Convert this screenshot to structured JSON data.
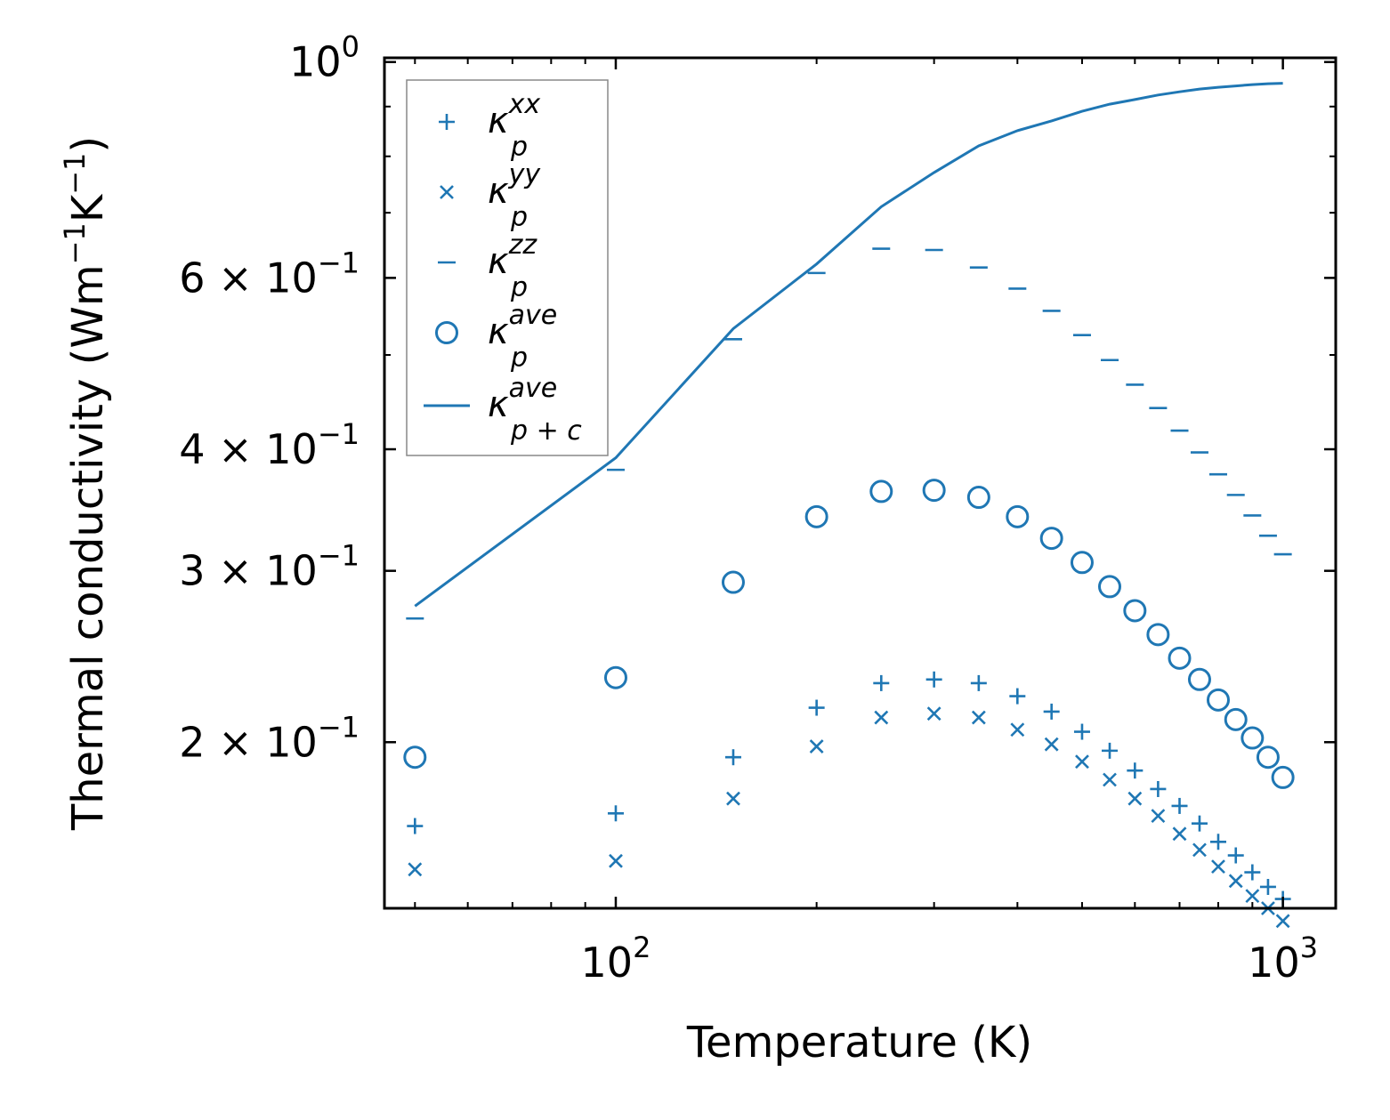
{
  "chart_data": {
    "type": "scatter",
    "xscale": "log",
    "yscale": "log",
    "xlabel": "Temperature (K)",
    "ylabel": "Thermal conductivity (Wm",
    "ylabel_unit_parts": [
      "−1",
      "K",
      "−1",
      ")"
    ],
    "xlim": [
      45,
      1200
    ],
    "ylim": [
      0.135,
      1.01
    ],
    "x_ticks": [
      {
        "value": 100,
        "base": "10",
        "exp": "2"
      },
      {
        "value": 1000,
        "base": "10",
        "exp": "3"
      }
    ],
    "y_ticks": [
      {
        "value": 1.0,
        "coef": "",
        "base": "10",
        "exp": "0"
      },
      {
        "value": 0.6,
        "coef": "6 × ",
        "base": "10",
        "exp": "−1"
      },
      {
        "value": 0.4,
        "coef": "4 × ",
        "base": "10",
        "exp": "−1"
      },
      {
        "value": 0.3,
        "coef": "3 × ",
        "base": "10",
        "exp": "−1"
      },
      {
        "value": 0.2,
        "coef": "2 × ",
        "base": "10",
        "exp": "−1"
      }
    ],
    "x": [
      50,
      100,
      150,
      200,
      250,
      300,
      350,
      400,
      450,
      500,
      550,
      600,
      650,
      700,
      750,
      800,
      850,
      900,
      950,
      1000
    ],
    "series": [
      {
        "name": "kxx",
        "label": "κ",
        "sub": "p",
        "sup": "xx",
        "marker": "plus",
        "values": [
          0.164,
          0.169,
          0.193,
          0.217,
          0.23,
          0.232,
          0.23,
          0.223,
          0.215,
          0.205,
          0.196,
          0.187,
          0.179,
          0.172,
          0.165,
          0.158,
          0.153,
          0.147,
          0.142,
          0.138
        ]
      },
      {
        "name": "kyy",
        "label": "κ",
        "sub": "p",
        "sup": "yy",
        "marker": "x",
        "values": [
          0.148,
          0.151,
          0.175,
          0.198,
          0.212,
          0.214,
          0.212,
          0.206,
          0.199,
          0.191,
          0.183,
          0.175,
          0.168,
          0.161,
          0.155,
          0.149,
          0.144,
          0.139,
          0.135,
          0.131
        ]
      },
      {
        "name": "kzz",
        "label": "κ",
        "sub": "p",
        "sup": "zz",
        "marker": "hline",
        "values": [
          0.268,
          0.381,
          0.519,
          0.607,
          0.643,
          0.641,
          0.615,
          0.585,
          0.555,
          0.524,
          0.494,
          0.466,
          0.441,
          0.418,
          0.397,
          0.377,
          0.359,
          0.342,
          0.326,
          0.312
        ]
      },
      {
        "name": "kave",
        "label": "κ",
        "sub": "p",
        "sup": "ave",
        "marker": "circle",
        "values": [
          0.193,
          0.233,
          0.292,
          0.341,
          0.362,
          0.363,
          0.357,
          0.341,
          0.324,
          0.306,
          0.289,
          0.273,
          0.258,
          0.244,
          0.232,
          0.221,
          0.211,
          0.202,
          0.193,
          0.184
        ]
      },
      {
        "name": "kave_pc",
        "label": "κ",
        "sub": "p + c",
        "sup": "ave",
        "marker": "line",
        "values": [
          0.276,
          0.392,
          0.532,
          0.62,
          0.71,
          0.77,
          0.82,
          0.85,
          0.87,
          0.89,
          0.905,
          0.915,
          0.925,
          0.932,
          0.938,
          0.942,
          0.945,
          0.948,
          0.95,
          0.951
        ]
      }
    ],
    "color": "#1f77b4",
    "legend_position": "upper-left"
  }
}
